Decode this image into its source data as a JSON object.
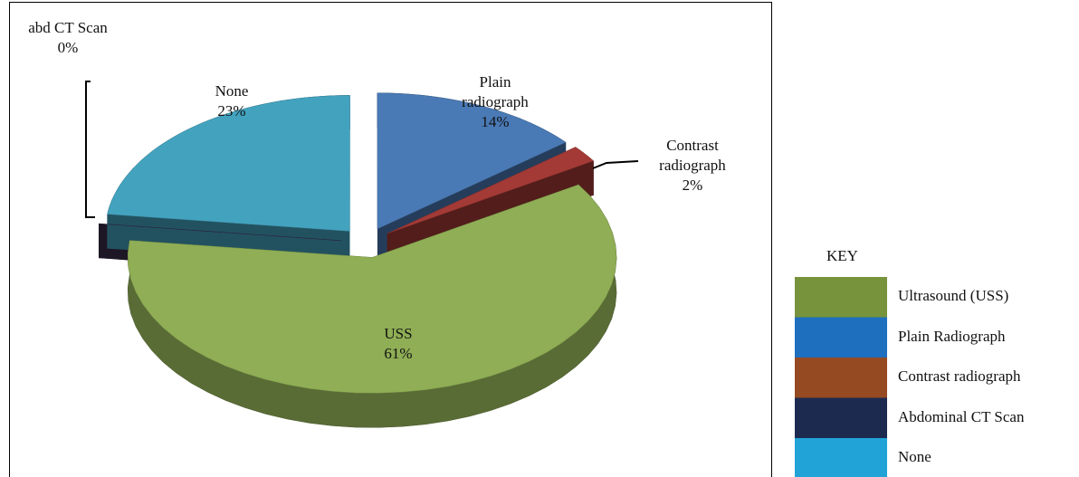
{
  "chart_data": {
    "type": "pie",
    "categories": [
      "Plain radiograph",
      "Contrast radiograph",
      "USS",
      "abd CT Scan",
      "None"
    ],
    "values": [
      14,
      2,
      61,
      0,
      23
    ],
    "value_labels": [
      "14%",
      "2%",
      "61%",
      "0%",
      "23%"
    ],
    "colors": [
      "#4a7ab5",
      "#a33a36",
      "#8fae55",
      "#3a2c4a",
      "#43a3bf"
    ],
    "legend_title": "KEY",
    "legend_labels": [
      "Ultrasound (USS)",
      "Plain Radiograph",
      "Contrast radiograph",
      "Abdominal CT Scan",
      "None"
    ],
    "legend_colors": [
      "#77933c",
      "#1f6fbf",
      "#954a22",
      "#1c2a50",
      "#21a3d8"
    ]
  }
}
